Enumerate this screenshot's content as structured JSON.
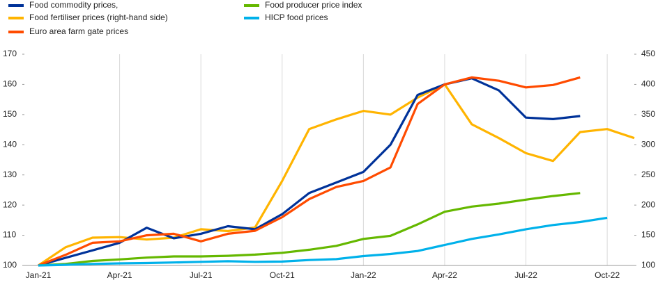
{
  "chart_data": {
    "type": "line",
    "categories": [
      "Jan-21",
      null,
      null,
      "Apr-21",
      null,
      null,
      "Jul-21",
      null,
      null,
      "Oct-21",
      null,
      null,
      "Jan-22",
      null,
      null,
      "Apr-22",
      null,
      null,
      "Jul-22",
      null,
      null,
      "Oct-22",
      null
    ],
    "series": [
      {
        "name": "Food commodity prices,",
        "color": "#003299",
        "values": [
          100,
          102.5,
          105,
          107.5,
          112.5,
          109,
          110.5,
          113,
          112,
          117,
          124,
          127.5,
          131,
          140,
          156.5,
          160,
          162,
          158,
          149,
          148.5,
          149.5,
          null,
          null
        ]
      },
      {
        "name": "Food fertiliser prices (right-hand side)",
        "color": "#ffb400",
        "axis": "y2",
        "values": [
          100,
          130,
          146,
          147,
          143,
          146,
          160,
          157,
          163,
          240,
          326,
          342,
          356,
          350,
          378,
          400,
          334,
          311,
          286,
          273,
          321,
          326,
          311
        ]
      },
      {
        "name": "Euro area farm gate prices",
        "color": "#ff4b00",
        "values": [
          100,
          103.5,
          107.5,
          108,
          110,
          110.5,
          108,
          110.5,
          111.5,
          116,
          122,
          126,
          128,
          132.5,
          153.5,
          160,
          162.3,
          161.2,
          159,
          159.8,
          162.3,
          null,
          null
        ]
      },
      {
        "name": "Food producer price index",
        "color": "#65b800",
        "values": [
          100,
          100.5,
          101.5,
          102,
          102.6,
          103,
          103,
          103.2,
          103.6,
          104.2,
          105.2,
          106.5,
          108.8,
          109.8,
          113.6,
          117.8,
          119.5,
          120.5,
          121.8,
          123,
          124,
          null,
          null
        ]
      },
      {
        "name": "HICP food prices",
        "color": "#00b1ea",
        "values": [
          100,
          100.2,
          100.5,
          100.7,
          100.8,
          101,
          101.2,
          101.4,
          101.2,
          101.3,
          101.8,
          102.1,
          103.1,
          103.8,
          104.8,
          106.8,
          108.8,
          110.3,
          112,
          113.4,
          114.4,
          115.8,
          null
        ]
      }
    ],
    "ylim": [
      100,
      170
    ],
    "yticks": [
      100,
      110,
      120,
      130,
      140,
      150,
      160,
      170
    ],
    "y2lim": [
      100,
      450
    ],
    "y2ticks": [
      100,
      150,
      200,
      250,
      300,
      350,
      400,
      450
    ],
    "grid": true
  }
}
